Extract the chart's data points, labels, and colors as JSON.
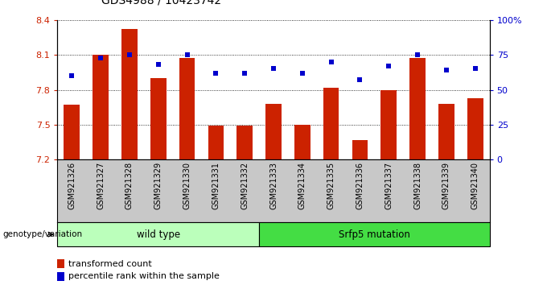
{
  "title": "GDS4988 / 10423742",
  "samples": [
    "GSM921326",
    "GSM921327",
    "GSM921328",
    "GSM921329",
    "GSM921330",
    "GSM921331",
    "GSM921332",
    "GSM921333",
    "GSM921334",
    "GSM921335",
    "GSM921336",
    "GSM921337",
    "GSM921338",
    "GSM921339",
    "GSM921340"
  ],
  "transformed_count": [
    7.67,
    8.1,
    8.32,
    7.9,
    8.07,
    7.49,
    7.49,
    7.68,
    7.5,
    7.82,
    7.37,
    7.8,
    8.07,
    7.68,
    7.73
  ],
  "percentile_rank": [
    60,
    73,
    75,
    68,
    75,
    62,
    62,
    65,
    62,
    70,
    57,
    67,
    75,
    64,
    65
  ],
  "ylim_left": [
    7.2,
    8.4
  ],
  "ylim_right": [
    0,
    100
  ],
  "yticks_left": [
    7.2,
    7.5,
    7.8,
    8.1,
    8.4
  ],
  "ytick_labels_left": [
    "7.2",
    "7.5",
    "7.8",
    "8.1",
    "8.4"
  ],
  "yticks_right": [
    0,
    25,
    50,
    75,
    100
  ],
  "ytick_labels_right": [
    "0",
    "25",
    "50",
    "75",
    "100%"
  ],
  "bar_color": "#cc2200",
  "dot_color": "#0000cc",
  "wild_type_count": 7,
  "mutation_count": 8,
  "wild_type_label": "wild type",
  "mutation_label": "Srfp5 mutation",
  "genotype_label": "genotype/variation",
  "legend_bar_label": "transformed count",
  "legend_dot_label": "percentile rank within the sample",
  "wild_type_color": "#bbffbb",
  "mutation_color": "#44dd44",
  "sample_bg_color": "#c8c8c8",
  "xlabel_color": "#cc2200",
  "ylabel_right_color": "#0000cc"
}
